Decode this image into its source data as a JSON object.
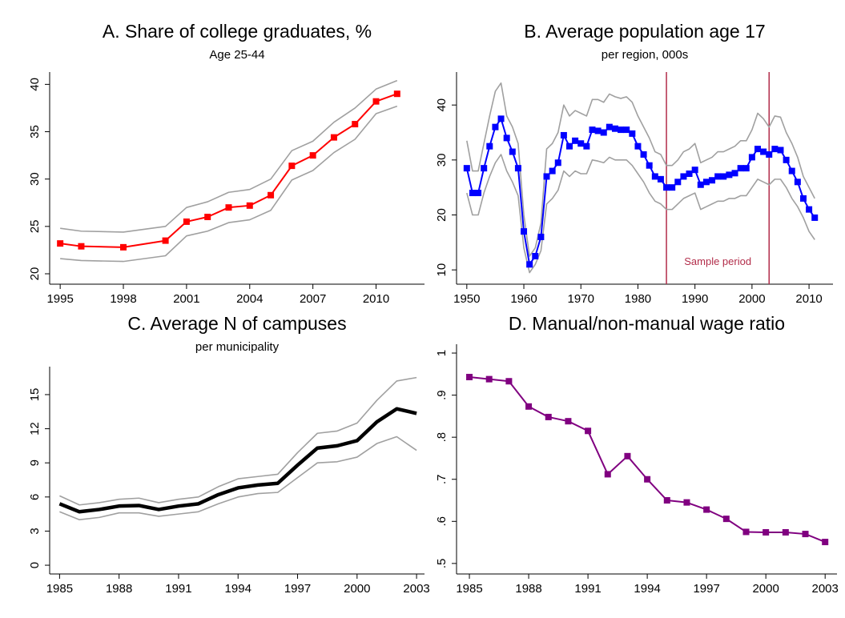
{
  "chart_data": [
    {
      "type": "line",
      "title": "A. Share of college graduates, %",
      "subtitle": "Age 25-44",
      "x": [
        1995,
        1996,
        1998,
        2000,
        2001,
        2002,
        2003,
        2004,
        2005,
        2006,
        2007,
        2008,
        2009,
        2010,
        2011
      ],
      "xlim": [
        1994.5,
        2012.3
      ],
      "xticks": [
        1995,
        1998,
        2001,
        2004,
        2007,
        2010
      ],
      "ylim": [
        18.9,
        41.3
      ],
      "yticks": [
        20,
        25,
        30,
        35,
        40
      ],
      "series": [
        {
          "color": "#a0a0a0",
          "values": [
            24.8,
            24.5,
            24.4,
            25.0,
            27.0,
            27.6,
            28.6,
            28.9,
            30.0,
            33.0,
            34.0,
            36.0,
            37.5,
            39.5,
            40.4
          ]
        },
        {
          "color": "#a0a0a0",
          "values": [
            21.6,
            21.4,
            21.3,
            21.9,
            24.0,
            24.5,
            25.4,
            25.7,
            26.7,
            29.9,
            30.9,
            32.8,
            34.2,
            36.9,
            37.7
          ]
        },
        {
          "color": "#ff0000",
          "marker": "square",
          "values": [
            23.2,
            22.9,
            22.8,
            23.5,
            25.5,
            26.0,
            27.0,
            27.2,
            28.3,
            31.4,
            32.5,
            34.4,
            35.8,
            38.2,
            39.0
          ]
        }
      ]
    },
    {
      "type": "line",
      "title": "B. Average population age 17",
      "subtitle": "per region, 000s",
      "x": [
        1950,
        1951,
        1952,
        1953,
        1954,
        1955,
        1956,
        1957,
        1958,
        1959,
        1960,
        1961,
        1962,
        1963,
        1964,
        1965,
        1966,
        1967,
        1968,
        1969,
        1970,
        1971,
        1972,
        1973,
        1974,
        1975,
        1976,
        1977,
        1978,
        1979,
        1980,
        1981,
        1982,
        1983,
        1984,
        1985,
        1986,
        1987,
        1988,
        1989,
        1990,
        1991,
        1992,
        1993,
        1994,
        1995,
        1996,
        1997,
        1998,
        1999,
        2000,
        2001,
        2002,
        2003,
        2004,
        2005,
        2006,
        2007,
        2008,
        2009,
        2010,
        2011
      ],
      "xlim": [
        1948.2,
        2014.2
      ],
      "xticks": [
        1950,
        1960,
        1970,
        1980,
        1990,
        2000,
        2010
      ],
      "ylim": [
        7.4,
        46
      ],
      "yticks": [
        10,
        20,
        30,
        40
      ],
      "vlines": [
        1985,
        2003
      ],
      "vline_color": "#b22d4a",
      "annotation": "Sample period",
      "series": [
        {
          "color": "#a0a0a0",
          "values": [
            33.5,
            28,
            28,
            33,
            38,
            42.5,
            44,
            38,
            36,
            33,
            20,
            12.5,
            14,
            18.5,
            32,
            33,
            35,
            40,
            38,
            39,
            38.5,
            38,
            41,
            41,
            40.5,
            42,
            41.5,
            41.2,
            41.5,
            40.5,
            38,
            36,
            34,
            31.5,
            31,
            29,
            29,
            30,
            31.5,
            32,
            33,
            29.5,
            30,
            30.5,
            31.5,
            31.5,
            32,
            32.5,
            33.5,
            33.5,
            35.5,
            38.5,
            37.5,
            36,
            38,
            37.8,
            35,
            33,
            30.5,
            27,
            25,
            23
          ]
        },
        {
          "color": "#a0a0a0",
          "values": [
            24,
            20,
            20,
            24,
            27,
            29.5,
            31,
            28,
            26,
            23.5,
            14,
            9.5,
            11,
            13.5,
            22,
            23,
            24.5,
            28,
            27,
            28,
            27.5,
            27.5,
            30,
            29.8,
            29.5,
            30.5,
            30,
            30,
            30,
            29,
            27.5,
            26,
            24,
            22.5,
            22,
            21,
            21,
            22,
            23,
            23.5,
            24,
            21,
            21.5,
            22,
            22.5,
            22.5,
            23,
            23,
            23.5,
            23.5,
            25,
            26.5,
            26,
            25.5,
            26.5,
            26.5,
            25,
            23,
            21.5,
            19.5,
            17,
            15.5
          ]
        },
        {
          "color": "#0000ff",
          "marker": "square",
          "values": [
            28.5,
            24,
            24,
            28.5,
            32.5,
            36,
            37.5,
            34,
            31.5,
            28.5,
            17,
            11,
            12.5,
            16,
            27,
            28,
            29.5,
            34.5,
            32.5,
            33.5,
            33,
            32.5,
            35.5,
            35.3,
            35,
            36,
            35.7,
            35.5,
            35.5,
            34.8,
            32.5,
            31,
            29,
            27,
            26.5,
            25,
            25,
            26,
            27,
            27.5,
            28.2,
            25.5,
            26,
            26.3,
            27,
            27,
            27.3,
            27.6,
            28.5,
            28.5,
            30.5,
            32,
            31.5,
            31,
            32,
            31.8,
            30,
            28,
            26,
            23,
            21,
            19.5
          ]
        }
      ]
    },
    {
      "type": "line",
      "title": "C. Average N of campuses",
      "subtitle": "per municipality",
      "x": [
        1985,
        1986,
        1987,
        1988,
        1989,
        1990,
        1991,
        1992,
        1993,
        1994,
        1995,
        1996,
        1997,
        1998,
        1999,
        2000,
        2001,
        2002,
        2003
      ],
      "xlim": [
        1984.5,
        2003.4
      ],
      "xticks": [
        1985,
        1988,
        1991,
        1994,
        1997,
        2000,
        2003
      ],
      "ylim": [
        -0.77,
        17.46
      ],
      "yticks": [
        0,
        3,
        6,
        9,
        12,
        15
      ],
      "series": [
        {
          "color": "#a0a0a0",
          "values": [
            6.1,
            5.3,
            5.5,
            5.8,
            5.9,
            5.5,
            5.8,
            6.0,
            6.9,
            7.6,
            7.8,
            8.0,
            9.9,
            11.6,
            11.8,
            12.5,
            14.5,
            16.2,
            16.5
          ]
        },
        {
          "color": "#a0a0a0",
          "values": [
            4.7,
            4.0,
            4.2,
            4.6,
            4.6,
            4.3,
            4.5,
            4.7,
            5.4,
            6.0,
            6.3,
            6.4,
            7.7,
            9.0,
            9.1,
            9.5,
            10.7,
            11.3,
            10.1
          ]
        },
        {
          "color": "#000000",
          "values": [
            5.4,
            4.7,
            4.9,
            5.2,
            5.25,
            4.9,
            5.2,
            5.4,
            6.2,
            6.8,
            7.05,
            7.2,
            8.8,
            10.3,
            10.5,
            10.95,
            12.6,
            13.75,
            13.35
          ]
        }
      ]
    },
    {
      "type": "line",
      "title": "D. Manual/non-manual wage ratio",
      "x": [
        1985,
        1986,
        1987,
        1988,
        1989,
        1990,
        1991,
        1992,
        1993,
        1994,
        1995,
        1996,
        1997,
        1998,
        1999,
        2000,
        2001,
        2002,
        2003
      ],
      "xlim": [
        1984.35,
        2003.6
      ],
      "xticks": [
        1985,
        1988,
        1991,
        1994,
        1997,
        2000,
        2003
      ],
      "ylim": [
        0.475,
        1.021
      ],
      "yticks": [
        {
          "value": 0.5,
          "label": ".5"
        },
        {
          "value": 0.6,
          "label": ".6"
        },
        {
          "value": 0.7,
          "label": ".7"
        },
        {
          "value": 0.8,
          "label": ".8"
        },
        {
          "value": 0.9,
          "label": ".9"
        },
        1
      ],
      "series": [
        {
          "color": "#800080",
          "marker": "square",
          "values": [
            0.943,
            0.938,
            0.933,
            0.873,
            0.848,
            0.838,
            0.815,
            0.712,
            0.755,
            0.7,
            0.65,
            0.645,
            0.628,
            0.606,
            0.575,
            0.574,
            0.574,
            0.57,
            0.551
          ]
        }
      ]
    }
  ]
}
